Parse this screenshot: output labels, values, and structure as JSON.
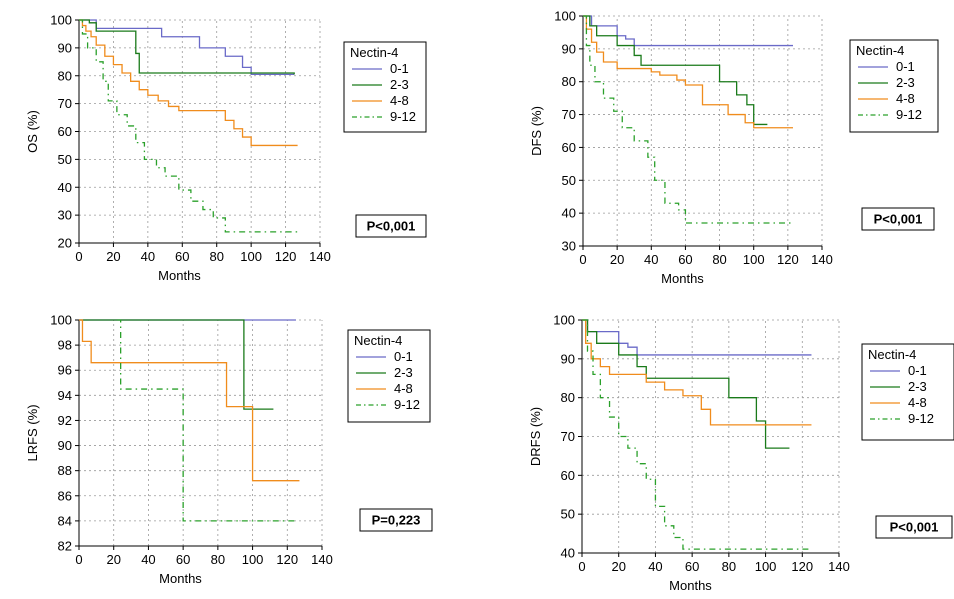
{
  "chart_data": [
    {
      "type": "line",
      "ylabel": "OS (%)",
      "xlabel": "Months",
      "ylim": [
        20,
        100
      ],
      "yticks": [
        "20",
        "30",
        "40",
        "50",
        "60",
        "70",
        "80",
        "90",
        "100"
      ],
      "xlim": [
        0,
        140
      ],
      "xticks": [
        "0",
        "20",
        "40",
        "60",
        "80",
        "100",
        "120",
        "140"
      ],
      "grid": true,
      "legend_title": "Nectin-4",
      "legend_position": "right",
      "pvalue": "P<0,001",
      "series": [
        {
          "name": "0-1",
          "color": "#6a6ac8",
          "dash": "solid",
          "x": [
            0,
            10,
            40,
            48,
            70,
            85,
            95,
            100,
            125
          ],
          "y": [
            100,
            97,
            97,
            94,
            90,
            87,
            83,
            80.5,
            80.5
          ]
        },
        {
          "name": "2-3",
          "color": "#1a7a1a",
          "dash": "solid",
          "x": [
            0,
            6,
            10,
            30,
            33,
            35,
            100,
            125
          ],
          "y": [
            100,
            99,
            96,
            96,
            88,
            81,
            81,
            80.5
          ]
        },
        {
          "name": "4-8",
          "color": "#f08c1c",
          "dash": "solid",
          "x": [
            0,
            2,
            4,
            7,
            10,
            15,
            20,
            25,
            30,
            35,
            40,
            46,
            52,
            58,
            80,
            85,
            90,
            95,
            100,
            127
          ],
          "y": [
            100,
            98,
            96,
            94,
            91,
            87,
            84,
            81,
            78,
            75,
            73,
            71,
            69,
            67.5,
            67.5,
            64,
            61,
            58,
            55,
            55
          ]
        },
        {
          "name": "9-12",
          "color": "#2aa02a",
          "dash": "dashed",
          "x": [
            0,
            2,
            5,
            10,
            14,
            17,
            22,
            28,
            33,
            38,
            45,
            50,
            58,
            65,
            72,
            78,
            85,
            90,
            127
          ],
          "y": [
            100,
            95,
            90,
            85,
            78,
            71,
            66,
            62,
            56,
            50,
            47,
            44,
            39,
            35,
            32,
            29,
            24,
            24,
            24
          ]
        }
      ]
    },
    {
      "type": "line",
      "ylabel": "DFS (%)",
      "xlabel": "Months",
      "ylim": [
        30,
        100
      ],
      "yticks": [
        "30",
        "40",
        "50",
        "60",
        "70",
        "80",
        "90",
        "100"
      ],
      "xlim": [
        0,
        140
      ],
      "xticks": [
        "0",
        "20",
        "40",
        "60",
        "80",
        "100",
        "120",
        "140"
      ],
      "grid": true,
      "legend_title": "Nectin-4",
      "legend_position": "right",
      "pvalue": "P<0,001",
      "series": [
        {
          "name": "0-1",
          "color": "#6a6ac8",
          "dash": "solid",
          "x": [
            0,
            5,
            20,
            25,
            30,
            123
          ],
          "y": [
            100,
            97,
            94,
            93,
            91,
            91
          ]
        },
        {
          "name": "2-3",
          "color": "#1a7a1a",
          "dash": "solid",
          "x": [
            0,
            4,
            8,
            20,
            30,
            34,
            80,
            90,
            96,
            100,
            108
          ],
          "y": [
            100,
            97,
            94,
            91,
            88,
            85,
            80,
            76,
            73,
            67,
            67
          ]
        },
        {
          "name": "4-8",
          "color": "#f08c1c",
          "dash": "solid",
          "x": [
            0,
            2,
            5,
            8,
            12,
            20,
            40,
            45,
            55,
            60,
            70,
            85,
            95,
            100,
            123
          ],
          "y": [
            100,
            96,
            92,
            89,
            86,
            84,
            83,
            82,
            80.5,
            79,
            73,
            70,
            67.5,
            66,
            66
          ]
        },
        {
          "name": "9-12",
          "color": "#2aa02a",
          "dash": "dashed",
          "x": [
            0,
            2,
            4,
            7,
            12,
            18,
            23,
            30,
            38,
            42,
            48,
            56,
            60,
            123
          ],
          "y": [
            100,
            91,
            85,
            80,
            75,
            71,
            66,
            62,
            57,
            50,
            43,
            41,
            37,
            37
          ]
        }
      ]
    },
    {
      "type": "line",
      "ylabel": "LRFS (%)",
      "xlabel": "Months",
      "ylim": [
        82,
        100
      ],
      "yticks": [
        "82",
        "84",
        "86",
        "88",
        "90",
        "92",
        "94",
        "96",
        "98",
        "100"
      ],
      "xlim": [
        0,
        140
      ],
      "xticks": [
        "0",
        "20",
        "40",
        "60",
        "80",
        "100",
        "120",
        "140"
      ],
      "grid": true,
      "legend_title": "Nectin-4",
      "legend_position": "right",
      "pvalue": "P=0,223",
      "series": [
        {
          "name": "0-1",
          "color": "#6a6ac8",
          "dash": "solid",
          "x": [
            0,
            125
          ],
          "y": [
            100,
            100
          ]
        },
        {
          "name": "2-3",
          "color": "#1a7a1a",
          "dash": "solid",
          "x": [
            0,
            95,
            112
          ],
          "y": [
            100,
            92.9,
            92.9
          ]
        },
        {
          "name": "4-8",
          "color": "#f08c1c",
          "dash": "solid",
          "x": [
            0,
            2,
            7,
            85,
            100,
            127
          ],
          "y": [
            100,
            98.3,
            96.6,
            93.1,
            87.2,
            87.2
          ]
        },
        {
          "name": "9-12",
          "color": "#2aa02a",
          "dash": "dashed",
          "x": [
            22,
            24,
            60,
            125
          ],
          "y": [
            100,
            94.5,
            84,
            84
          ]
        }
      ]
    },
    {
      "type": "line",
      "ylabel": "DRFS (%)",
      "xlabel": "Months",
      "ylim": [
        40,
        100
      ],
      "yticks": [
        "40",
        "50",
        "60",
        "70",
        "80",
        "90",
        "100"
      ],
      "xlim": [
        0,
        140
      ],
      "xticks": [
        "0",
        "20",
        "40",
        "60",
        "80",
        "100",
        "120",
        "140"
      ],
      "grid": true,
      "legend_title": "Nectin-4",
      "legend_position": "right",
      "pvalue": "P<0,001",
      "series": [
        {
          "name": "0-1",
          "color": "#6a6ac8",
          "dash": "solid",
          "x": [
            0,
            3,
            20,
            25,
            30,
            125
          ],
          "y": [
            100,
            97,
            94,
            93,
            91,
            91
          ]
        },
        {
          "name": "2-3",
          "color": "#1a7a1a",
          "dash": "solid",
          "x": [
            0,
            3,
            8,
            20,
            30,
            35,
            80,
            95,
            100,
            113
          ],
          "y": [
            100,
            97,
            94,
            91,
            88,
            85,
            80,
            74,
            67,
            67
          ]
        },
        {
          "name": "4-8",
          "color": "#f08c1c",
          "dash": "solid",
          "x": [
            0,
            2,
            5,
            10,
            15,
            35,
            45,
            55,
            65,
            70,
            125
          ],
          "y": [
            100,
            94,
            90,
            88,
            86,
            84,
            82,
            80.5,
            77,
            73,
            73
          ]
        },
        {
          "name": "9-12",
          "color": "#2aa02a",
          "dash": "dashed",
          "x": [
            0,
            3,
            6,
            10,
            15,
            20,
            25,
            30,
            35,
            40,
            45,
            50,
            55,
            125
          ],
          "y": [
            100,
            92,
            86,
            80,
            75,
            70,
            67,
            63,
            59,
            52,
            47,
            44,
            41,
            41
          ]
        }
      ]
    }
  ]
}
